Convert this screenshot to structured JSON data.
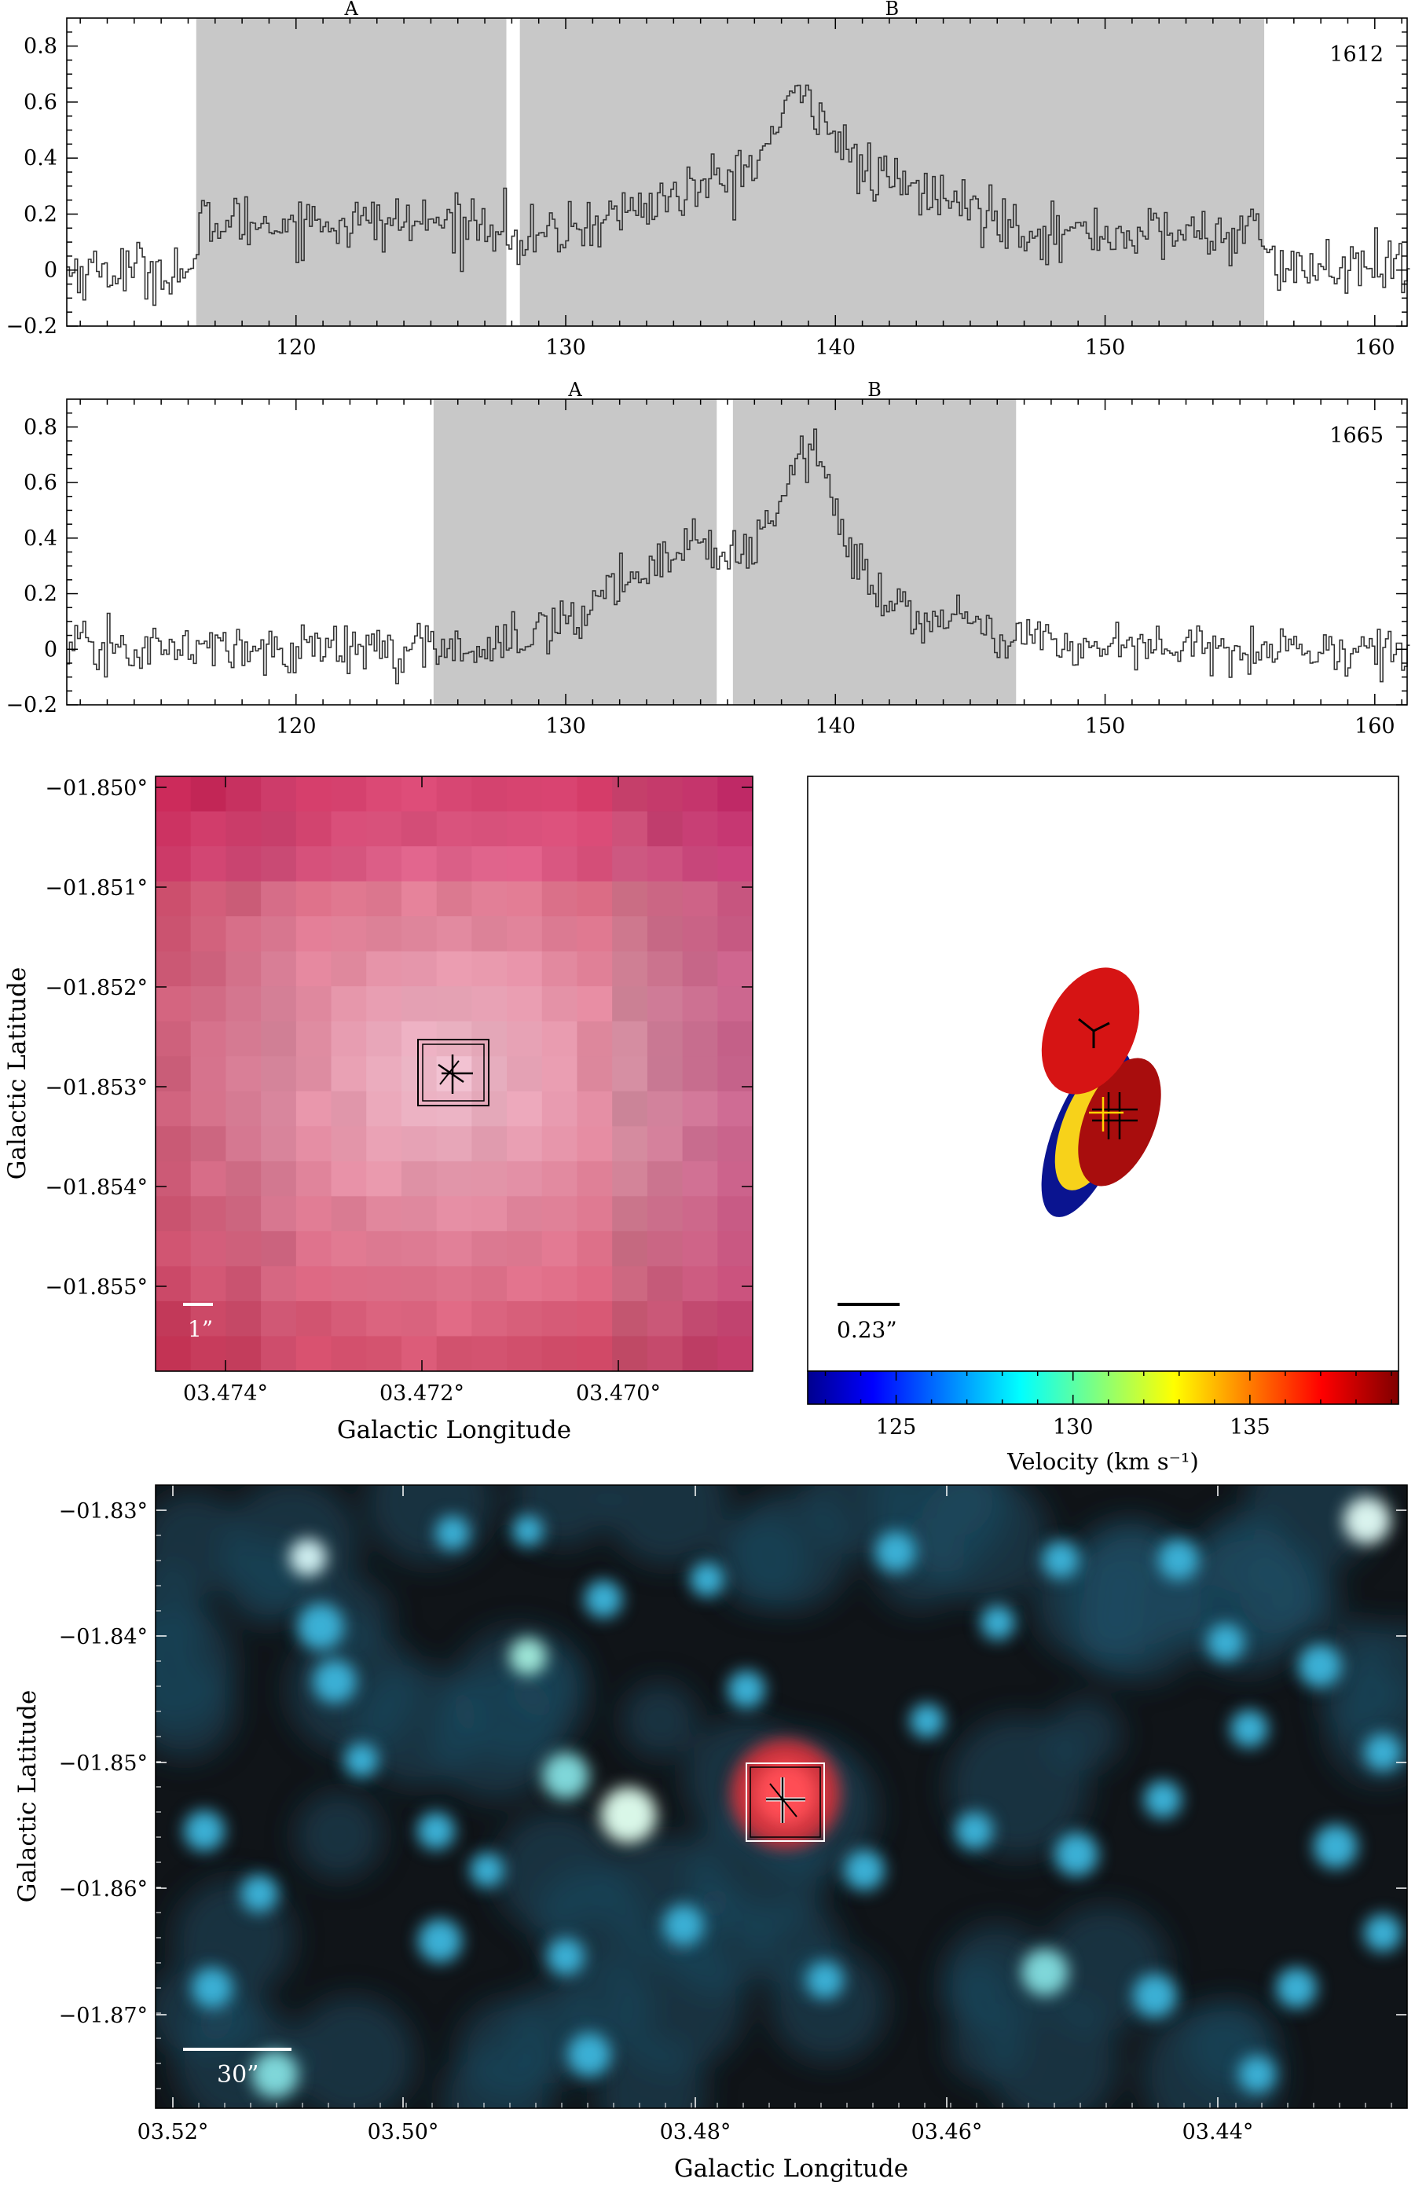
{
  "spectra": [
    {
      "label": "1612",
      "xlim": [
        111.5,
        161.2
      ],
      "ylim": [
        -0.2,
        0.9
      ],
      "xticks": [
        120,
        130,
        140,
        150,
        160
      ],
      "yticks": [
        -0.2,
        0,
        0.2,
        0.4,
        0.6,
        0.8
      ],
      "ytick_labels": [
        "−0.2",
        "0",
        "0.2",
        "0.4",
        "0.6",
        "0.8"
      ],
      "regions": [
        {
          "label": "A",
          "x0": 116.3,
          "x1": 127.8
        },
        {
          "label": "B",
          "x0": 128.3,
          "x1": 155.9
        }
      ],
      "shade_color": "#c8c8c8",
      "noise_sigma": 0.05,
      "profile": [
        {
          "center": 138.8,
          "amp": 0.35,
          "sigma": 6.5
        },
        {
          "center": 138.8,
          "amp": 0.27,
          "sigma": 1.0
        }
      ],
      "baseline": [
        {
          "x0": 116.3,
          "x1": 127.8,
          "level": 0.17
        },
        {
          "x0": 145.0,
          "x1": 156.0,
          "level": 0.13
        }
      ]
    },
    {
      "label": "1665",
      "xlim": [
        111.5,
        161.2
      ],
      "ylim": [
        -0.2,
        0.9
      ],
      "xticks": [
        120,
        130,
        140,
        150,
        160
      ],
      "yticks": [
        -0.2,
        0,
        0.2,
        0.4,
        0.6,
        0.8
      ],
      "ytick_labels": [
        "−0.2",
        "0",
        "0.2",
        "0.4",
        "0.6",
        "0.8"
      ],
      "regions": [
        {
          "label": "A",
          "x0": 125.1,
          "x1": 135.6
        },
        {
          "label": "B",
          "x0": 136.2,
          "x1": 146.7
        }
      ],
      "shade_color": "#c8c8c8",
      "noise_sigma": 0.045,
      "profile": [
        {
          "center": 134.0,
          "amp": 0.22,
          "sigma": 2.6
        },
        {
          "center": 138.5,
          "amp": 0.22,
          "sigma": 4.5
        },
        {
          "center": 139.0,
          "amp": 0.45,
          "sigma": 1.0
        }
      ],
      "baseline": []
    }
  ],
  "zoom_image": {
    "ytick_labels": [
      "−01.850°",
      "−01.851°",
      "−01.852°",
      "−01.853°",
      "−01.854°",
      "−01.855°"
    ],
    "xtick_labels": [
      "03.474°",
      "03.472°",
      "03.470°"
    ],
    "xlabel": "Galactic Longitude",
    "ylabel": "Galactic Latitude",
    "scalebar_label": "1”"
  },
  "velocity_map": {
    "scalebar_label": "0.23”",
    "colorbar": {
      "min": 122.5,
      "max": 139.2,
      "ticks": [
        125,
        130,
        135
      ],
      "label": "Velocity (km s⁻¹)"
    },
    "ellipses": [
      {
        "velocity": 123.0,
        "color": "#0a1490"
      },
      {
        "velocity": 134.2,
        "color": "#f7d21a"
      },
      {
        "velocity": 138.0,
        "color": "#a80d0d"
      },
      {
        "velocity": 138.6,
        "color": "#d61414"
      }
    ]
  },
  "wide_image": {
    "ytick_labels": [
      "−01.83°",
      "−01.84°",
      "−01.85°",
      "−01.86°",
      "−01.87°"
    ],
    "xtick_labels": [
      "03.52°",
      "03.50°",
      "03.48°",
      "03.46°",
      "03.44°"
    ],
    "xlabel": "Galactic Longitude",
    "ylabel": "Galactic Latitude",
    "scalebar_label": "30”"
  }
}
